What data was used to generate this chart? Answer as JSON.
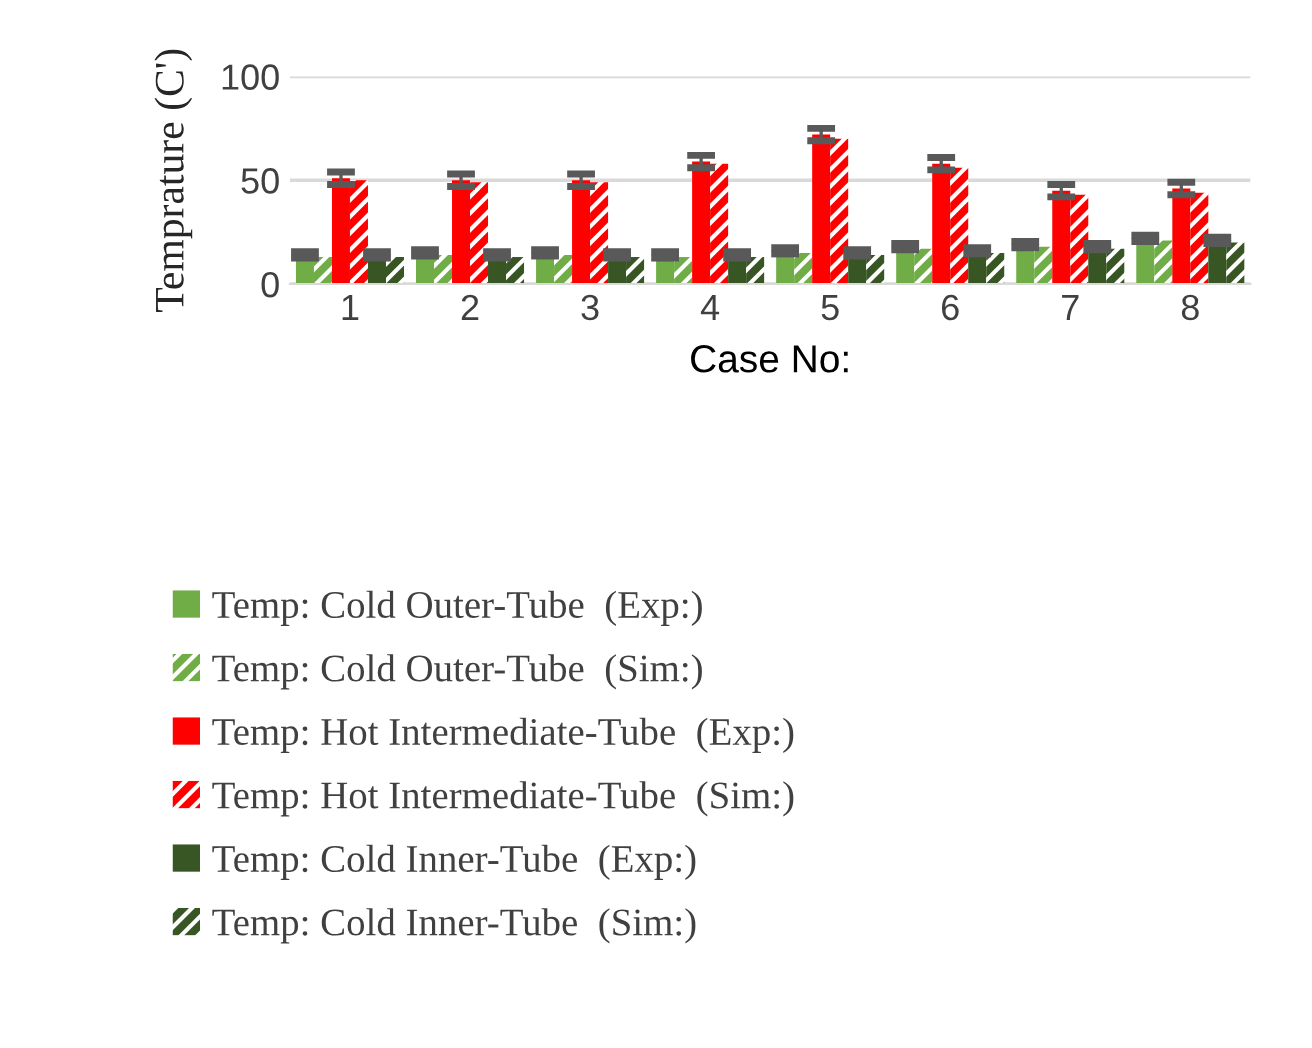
{
  "chart_data": {
    "type": "bar",
    "xlabel": "Case No:",
    "ylabel": "Temprature (C')",
    "categories": [
      "1",
      "2",
      "3",
      "4",
      "5",
      "6",
      "7",
      "8"
    ],
    "ylim": [
      0,
      100
    ],
    "yticks": [
      0,
      50,
      100
    ],
    "grid": "y",
    "legend": "bottom",
    "series": [
      {
        "name": "Temp: Cold Outer-Tube  (Exp:)",
        "color": "#70ad47",
        "values": [
          14,
          15,
          15,
          14,
          16,
          18,
          19,
          22
        ],
        "errors": [
          1.5,
          1.5,
          1.5,
          1.5,
          1.5,
          1.5,
          1.5,
          1.5
        ]
      },
      {
        "name": "Temp: Cold Outer-Tube  (Sim:)",
        "color": "#70ad47",
        "values": [
          13,
          14,
          14,
          13,
          15,
          17,
          18,
          21
        ]
      },
      {
        "name": "Temp: Hot Intermediate-Tube  (Exp:)",
        "color": "#ff0000",
        "values": [
          51,
          50,
          50,
          59,
          72,
          58,
          45,
          46
        ],
        "errors": [
          3,
          3,
          3,
          3,
          3,
          3,
          3,
          3
        ]
      },
      {
        "name": "Temp: Hot Intermediate-Tube  (Sim:)",
        "color": "#ff0000",
        "values": [
          50,
          49,
          49,
          58,
          70,
          56,
          43,
          44
        ]
      },
      {
        "name": "Temp: Cold Inner-Tube  (Exp:)",
        "color": "#375623",
        "values": [
          14,
          14,
          14,
          14,
          15,
          16,
          18,
          21
        ],
        "errors": [
          1.5,
          1.5,
          1.5,
          1.5,
          1.5,
          1.5,
          1.5,
          1.5
        ]
      },
      {
        "name": "Temp: Cold Inner-Tube  (Sim:)",
        "color": "#375623",
        "values": [
          13,
          13,
          13,
          13,
          14,
          15,
          17,
          20
        ]
      }
    ]
  }
}
